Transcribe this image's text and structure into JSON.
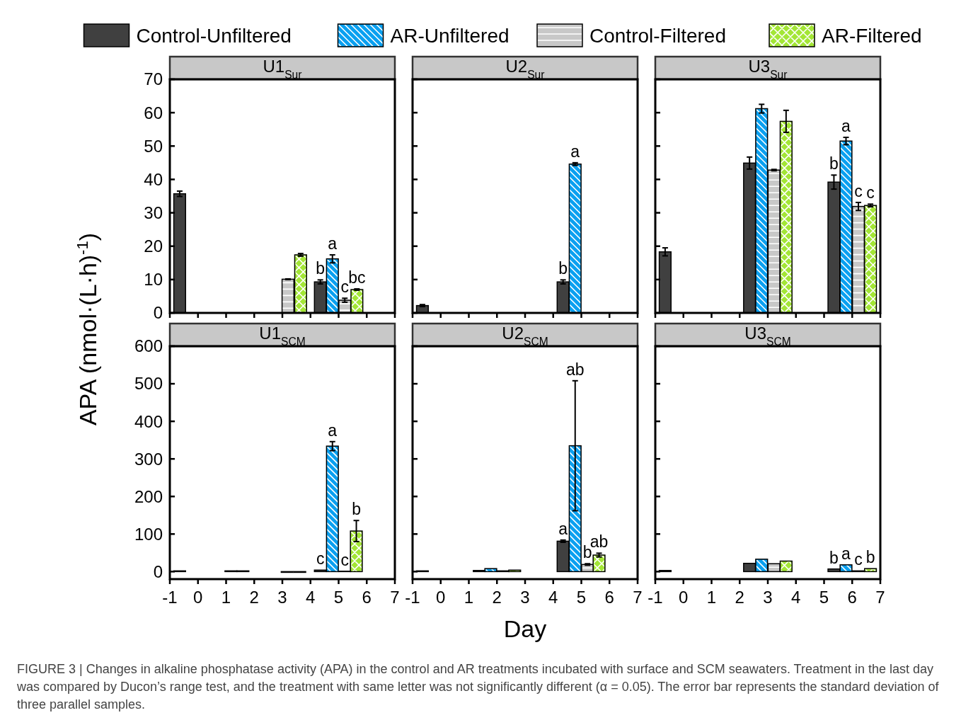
{
  "chart_data": [
    {
      "type": "bar",
      "title": "U1$_{Sur}$",
      "ylabel": "APA (nmol·(L·h)$^{-1}$)",
      "legend": "top",
      "tick_labels": "y",
      "xlim": [
        -1,
        7
      ],
      "xticks": [
        -1,
        0,
        1,
        2,
        3,
        4,
        5,
        6,
        7
      ],
      "ylim": [
        0,
        70
      ],
      "yticks": [
        0,
        10,
        20,
        30,
        40,
        50,
        60,
        70
      ],
      "series": [
        {
          "name": "Control-Unfiltered",
          "color": "#404040",
          "x": [
            -0.65,
            4.35
          ],
          "values": [
            35.7,
            9.3
          ],
          "errors": [
            0.8,
            0.6
          ]
        },
        {
          "name": "AR-Unfiltered",
          "color": "#0aa0f0",
          "x": [
            4.78
          ],
          "values": [
            16.2
          ],
          "errors": [
            1.2
          ]
        },
        {
          "name": "Control-Filtered",
          "color": "#c8c8c8",
          "x": [
            3.2,
            5.22
          ],
          "values": [
            10.1,
            3.8
          ],
          "errors": [
            0.1,
            0.6
          ]
        },
        {
          "name": "AR-Filtered",
          "color": "#a3e635",
          "x": [
            3.65,
            5.65
          ],
          "values": [
            17.4,
            7.0
          ],
          "errors": [
            0.4,
            0.2
          ]
        }
      ],
      "annotations": [
        {
          "text": "b",
          "x": 4.35,
          "y": 9.3
        },
        {
          "text": "a",
          "x": 4.78,
          "y": 16.2
        },
        {
          "text": "c",
          "x": 5.22,
          "y": 3.8
        },
        {
          "text": "bc",
          "x": 5.65,
          "y": 7.0
        },
        "FIGURE 3 | Changes in alkaline phosphatase activity (APA) in the control and AR treatments incubated with surface and SCM seawaters. Treatment in the last day was compared by Ducon’s range test, and the treatment with same letter was not significantly different (α = 0.05). The error bar represents the standard deviation of three parallel samples."
      ]
    },
    {
      "type": "bar",
      "title": "U2$_{Sur}$",
      "tick_labels": false,
      "xlim": [
        -1,
        7
      ],
      "xticks": [
        -1,
        0,
        1,
        2,
        3,
        4,
        5,
        6,
        7
      ],
      "ylim": [
        0,
        70
      ],
      "yticks": [
        0,
        10,
        20,
        30,
        40,
        50,
        60,
        70
      ],
      "series": [
        {
          "color": "#404040",
          "x": [
            -0.65,
            4.35
          ],
          "values": [
            2.2,
            9.3
          ],
          "errors": [
            0.3,
            0.6
          ]
        },
        {
          "color": "#0aa0f0",
          "x": [
            4.78
          ],
          "values": [
            44.6
          ],
          "errors": [
            0.4
          ]
        }
      ],
      "annotations": [
        {
          "text": "b",
          "x": 4.35,
          "y": 9.3
        },
        {
          "text": "a",
          "x": 4.78,
          "y": 44.6
        }
      ]
    },
    {
      "type": "bar",
      "title": "U3$_{Sur}$",
      "tick_labels": false,
      "xlim": [
        -1,
        7
      ],
      "xticks": [
        -1,
        0,
        1,
        2,
        3,
        4,
        5,
        6,
        7
      ],
      "ylim": [
        0,
        70
      ],
      "yticks": [
        0,
        10,
        20,
        30,
        40,
        50,
        60,
        70
      ],
      "series": [
        {
          "color": "#404040",
          "x": [
            -0.65,
            2.35,
            5.35
          ],
          "values": [
            18.3,
            44.9,
            39.2
          ],
          "errors": [
            1.2,
            1.8,
            2.1
          ]
        },
        {
          "color": "#0aa0f0",
          "x": [
            2.78,
            5.78
          ],
          "values": [
            61.2,
            51.5
          ],
          "errors": [
            1.3,
            1.1
          ]
        },
        {
          "color": "#c8c8c8",
          "x": [
            3.22,
            6.22
          ],
          "values": [
            42.8,
            31.9
          ],
          "errors": [
            0.2,
            1.2
          ]
        },
        {
          "color": "#a3e635",
          "x": [
            3.65,
            6.65
          ],
          "values": [
            57.4,
            32.2
          ],
          "errors": [
            3.3,
            0.4
          ]
        }
      ],
      "annotations": [
        {
          "text": "b",
          "x": 5.35,
          "y": 39.2
        },
        {
          "text": "a",
          "x": 5.78,
          "y": 51.5
        },
        {
          "text": "c",
          "x": 6.22,
          "y": 31.9
        },
        {
          "text": "c",
          "x": 6.65,
          "y": 32.2
        }
      ]
    },
    {
      "type": "bar",
      "title": "U1$_{SCM}$",
      "xlim": [
        -1,
        7
      ],
      "xticks": [
        -1,
        0,
        1,
        2,
        3,
        4,
        5,
        6,
        7
      ],
      "ylim": [
        -20,
        600
      ],
      "yticks": [
        0,
        100,
        200,
        300,
        400,
        500,
        600
      ],
      "series": [
        {
          "color": "#404040",
          "x": [
            -0.65,
            4.35
          ],
          "values": [
            2,
            4
          ]
        },
        {
          "color": "#0aa0f0",
          "x": [
            4.78
          ],
          "values": [
            334
          ],
          "errors": [
            12
          ]
        },
        {
          "color": "#c8c8c8",
          "x": [
            1.17,
            3.17,
            5.22
          ],
          "values": [
            2,
            -2,
            1
          ]
        },
        {
          "color": "#a3e635",
          "x": [
            1.6,
            3.62,
            5.63
          ],
          "values": [
            2,
            -2,
            108
          ],
          "errors": [
            null,
            null,
            28
          ]
        }
      ],
      "annotations": [
        {
          "text": "c",
          "x": 4.35,
          "y": 4
        },
        {
          "text": "a",
          "x": 4.78,
          "y": 334
        },
        {
          "text": "c",
          "x": 5.22,
          "y": 1
        },
        {
          "text": "b",
          "x": 5.63,
          "y": 108
        }
      ]
    },
    {
      "type": "bar",
      "title": "U2$_{SCM}$",
      "xlabel": "Day",
      "tick_labels": "x",
      "xlim": [
        -1,
        7
      ],
      "xticks": [
        -1,
        0,
        1,
        2,
        3,
        4,
        5,
        6,
        7
      ],
      "ylim": [
        -20,
        600
      ],
      "yticks": [
        0,
        100,
        200,
        300,
        400,
        500,
        600
      ],
      "series": [
        {
          "color": "#404040",
          "x": [
            -0.65,
            1.37,
            4.35
          ],
          "values": [
            2,
            3,
            81
          ],
          "errors": [
            null,
            null,
            3
          ]
        },
        {
          "color": "#0aa0f0",
          "x": [
            1.78,
            4.78
          ],
          "values": [
            8,
            335
          ],
          "errors": [
            null,
            173
          ]
        },
        {
          "color": "#c8c8c8",
          "x": [
            2.22,
            5.22
          ],
          "values": [
            2,
            19
          ],
          "errors": [
            null,
            2
          ]
        },
        {
          "color": "#a3e635",
          "x": [
            2.63,
            5.63
          ],
          "values": [
            4,
            44
          ],
          "errors": [
            null,
            5
          ]
        }
      ],
      "annotations": [
        {
          "text": "a",
          "x": 4.35,
          "y": 81
        },
        {
          "text": "ab",
          "x": 4.78,
          "y": 508
        },
        {
          "text": "b",
          "x": 5.22,
          "y": 19
        },
        {
          "text": "ab",
          "x": 5.63,
          "y": 44
        }
      ]
    },
    {
      "type": "bar",
      "title": "U3$_{SCM}$",
      "tick_labels": "x",
      "xlim": [
        -1,
        7
      ],
      "xticks": [
        -1,
        0,
        1,
        2,
        3,
        4,
        5,
        6,
        7
      ],
      "ylim": [
        -20,
        600
      ],
      "yticks": [
        0,
        100,
        200,
        300,
        400,
        500,
        600
      ],
      "series": [
        {
          "color": "#404040",
          "x": [
            -0.65,
            2.35,
            5.35
          ],
          "values": [
            3,
            22,
            7
          ]
        },
        {
          "color": "#0aa0f0",
          "x": [
            2.78,
            5.78
          ],
          "values": [
            33,
            18
          ]
        },
        {
          "color": "#c8c8c8",
          "x": [
            3.22,
            6.22
          ],
          "values": [
            21,
            2
          ]
        },
        {
          "color": "#a3e635",
          "x": [
            3.65,
            6.65
          ],
          "values": [
            28,
            8
          ]
        }
      ],
      "annotations": [
        {
          "text": "b",
          "x": 5.35,
          "y": 7
        },
        {
          "text": "a",
          "x": 5.78,
          "y": 18
        },
        {
          "text": "c",
          "x": 6.22,
          "y": 2
        },
        {
          "text": "b",
          "x": 6.65,
          "y": 8
        }
      ]
    }
  ]
}
